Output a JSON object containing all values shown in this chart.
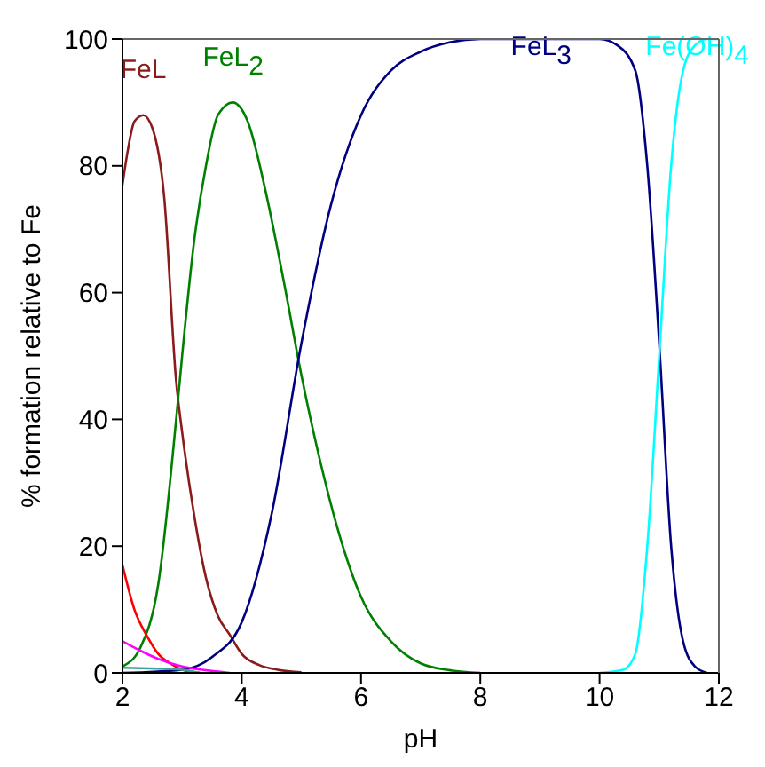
{
  "chart_data": {
    "type": "line",
    "xlabel": "pH",
    "ylabel": "% formation relative to Fe",
    "xlim": [
      2,
      12
    ],
    "xticks": [
      2,
      4,
      6,
      8,
      10,
      12
    ],
    "ylim": [
      0,
      100
    ],
    "yticks": [
      0,
      20,
      40,
      60,
      80,
      100
    ],
    "series": [
      {
        "name": "FeL",
        "color": "#8b1a1a",
        "x": [
          2,
          2.1,
          2.2,
          2.35,
          2.5,
          2.7,
          2.9,
          3.0,
          3.2,
          3.4,
          3.6,
          3.8,
          4.0,
          4.3,
          4.6,
          5.0
        ],
        "values": [
          77,
          83,
          87,
          88,
          86,
          75,
          46,
          38,
          25,
          15,
          9,
          6,
          3,
          1.2,
          0.5,
          0.1
        ]
      },
      {
        "name": "FeL$_{2}$",
        "color": "#008000",
        "x": [
          2,
          2.3,
          2.6,
          2.9,
          3.0,
          3.2,
          3.4,
          3.6,
          3.85,
          4.1,
          4.4,
          4.7,
          5.0,
          5.3,
          5.6,
          6.0,
          6.5,
          7.0,
          7.5,
          8.0
        ],
        "values": [
          1,
          4,
          14,
          40,
          50,
          68,
          80,
          88,
          90,
          87,
          76,
          62,
          47,
          34,
          23,
          12,
          5,
          1.5,
          0.4,
          0
        ]
      },
      {
        "name": "FeL$_{3}$",
        "color": "#000080",
        "x": [
          2,
          3.0,
          3.5,
          4.0,
          4.5,
          5.0,
          5.5,
          6.0,
          6.5,
          7.0,
          7.5,
          8.0,
          10.0,
          10.3,
          10.6,
          10.8,
          11.0,
          11.2,
          11.4,
          11.6,
          11.8
        ],
        "values": [
          0,
          0.5,
          2.5,
          8,
          25,
          52,
          74,
          88,
          95,
          98,
          99.5,
          100,
          100,
          99,
          95,
          80,
          52,
          20,
          5,
          1,
          0
        ]
      },
      {
        "name": "Fe(OH)$_{4}$",
        "color": "#00ffff",
        "x": [
          10.0,
          10.4,
          10.6,
          10.8,
          11.0,
          11.2,
          11.4,
          11.6,
          11.8,
          12
        ],
        "values": [
          0,
          0.5,
          3,
          20,
          50,
          80,
          95,
          99,
          100,
          100
        ]
      },
      {
        "color": "#ff0000",
        "x": [
          2,
          2.2,
          2.4,
          2.6,
          2.8,
          3.0,
          3.3
        ],
        "values": [
          17,
          10,
          6,
          3,
          1.5,
          0.5,
          0
        ]
      },
      {
        "color": "#ff00ff",
        "x": [
          2,
          2.3,
          2.6,
          3.0,
          3.5,
          3.8
        ],
        "values": [
          5,
          3.5,
          2.2,
          1,
          0.3,
          0
        ]
      },
      {
        "color": "#40a0a0",
        "x": [
          2,
          3.0,
          3.3
        ],
        "values": [
          0.8,
          0.5,
          0
        ]
      }
    ]
  }
}
